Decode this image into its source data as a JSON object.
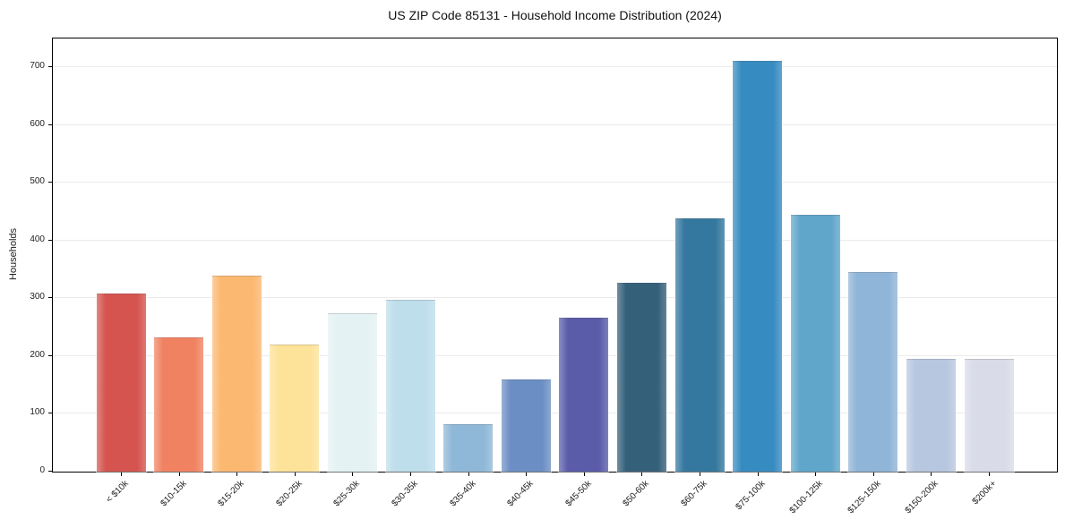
{
  "title": "US ZIP Code 85131 - Household Income Distribution (2024)",
  "chart_data": {
    "type": "bar",
    "title": "US ZIP Code 85131 - Household Income Distribution (2024)",
    "xlabel": "",
    "ylabel": "Households",
    "categories": [
      "< $10k",
      "$10-15k",
      "$15-20k",
      "$20-25k",
      "$25-30k",
      "$30-35k",
      "$35-40k",
      "$40-45k",
      "$45-50k",
      "$50-60k",
      "$60-75k",
      "$75-100k",
      "$100-125k",
      "$125-150k",
      "$150-200k",
      "$200k+"
    ],
    "values": [
      308,
      232,
      339,
      220,
      274,
      297,
      82,
      160,
      266,
      327,
      438,
      711,
      444,
      345,
      195,
      195
    ],
    "bar_colors": [
      "#d5544f",
      "#f08261",
      "#fbb871",
      "#fde299",
      "#e5f2f3",
      "#bfdeec",
      "#8fb8d8",
      "#6b8ec4",
      "#5a5ca9",
      "#35607a",
      "#35789f",
      "#368bc1",
      "#60a6cb",
      "#8fb5d8",
      "#b8c7e0",
      "#d9dbe8"
    ],
    "ylim": [
      0,
      750
    ],
    "yticks": [
      0,
      100,
      200,
      300,
      400,
      500,
      600,
      700
    ],
    "grid": "horizontal",
    "legend_position": "none",
    "background_color": "#ffffff",
    "axis_color": "#000000",
    "grid_color": "#ebebeb"
  }
}
